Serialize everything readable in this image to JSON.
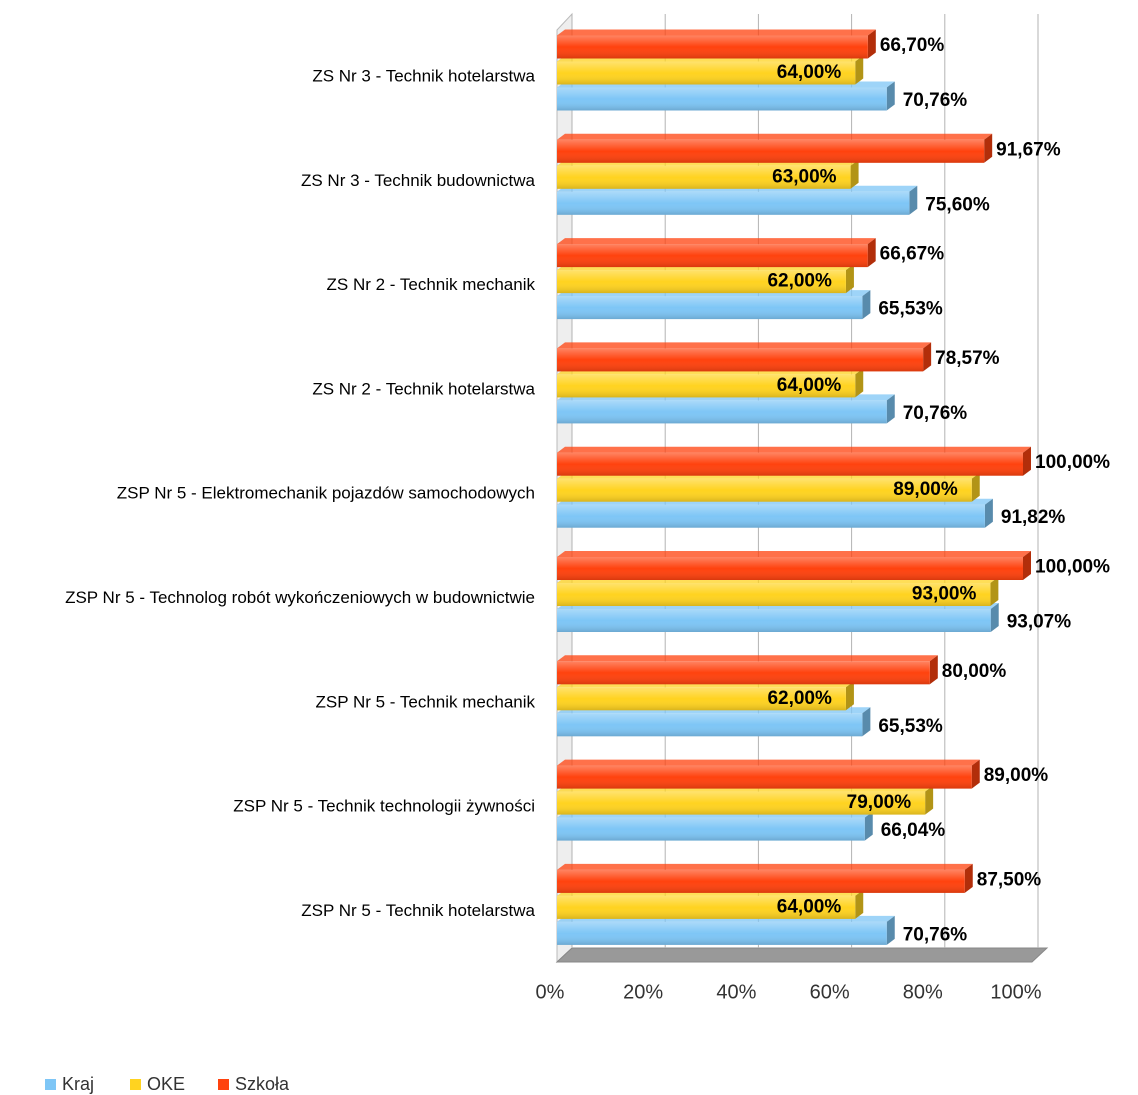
{
  "chart_data": {
    "type": "bar",
    "orientation": "horizontal",
    "categories": [
      "ZS Nr 3 - Technik hotelarstwa",
      "ZS Nr 3 - Technik budownictwa",
      "ZS Nr 2 - Technik mechanik",
      "ZS Nr 2 - Technik hotelarstwa",
      "ZSP Nr 5 - Elektromechanik pojazdów samochodowych",
      "ZSP Nr 5 - Technolog robót wykończeniowych w budownictwie",
      "ZSP Nr 5 - Technik mechanik",
      "ZSP Nr 5 - Technik technologii żywności",
      "ZSP Nr 5 - Technik hotelarstwa"
    ],
    "series": [
      {
        "name": "Kraj",
        "color": "#7ec6f6",
        "values": [
          70.76,
          75.6,
          65.53,
          70.76,
          91.82,
          93.07,
          65.53,
          66.04,
          70.76
        ],
        "value_labels": [
          "70,76%",
          "75,60%",
          "65,53%",
          "70,76%",
          "91,82%",
          "93,07%",
          "65,53%",
          "66,04%",
          "70,76%"
        ]
      },
      {
        "name": "OKE",
        "color": "#ffd320",
        "values": [
          64,
          63,
          62,
          64,
          89,
          93,
          62,
          79,
          64
        ],
        "value_labels": [
          "64,00%",
          "63,00%",
          "62,00%",
          "64,00%",
          "89,00%",
          "93,00%",
          "62,00%",
          "79,00%",
          "64,00%"
        ]
      },
      {
        "name": "Szkoła",
        "color": "#ff420e",
        "values": [
          66.7,
          91.67,
          66.67,
          78.57,
          100,
          100,
          80,
          89,
          87.5
        ],
        "value_labels": [
          "66,70%",
          "91,67%",
          "66,67%",
          "78,57%",
          "100,00%",
          "100,00%",
          "80,00%",
          "89,00%",
          "87,50%"
        ]
      }
    ],
    "xlim": [
      0,
      100
    ],
    "xticks": [
      {
        "value": 0,
        "label": "0%"
      },
      {
        "value": 20,
        "label": "20%"
      },
      {
        "value": 40,
        "label": "40%"
      },
      {
        "value": 60,
        "label": "60%"
      },
      {
        "value": 80,
        "label": "80%"
      },
      {
        "value": 100,
        "label": "100%"
      }
    ],
    "grid": true,
    "legend": "bottom-left"
  }
}
